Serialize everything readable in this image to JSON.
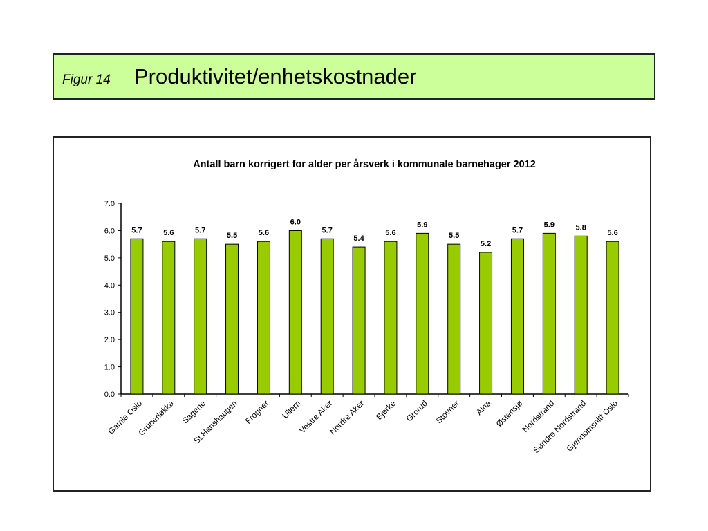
{
  "header": {
    "figure_label": "Figur 14",
    "title": "Produktivitet/enhetskostnader",
    "background": "#ccff99"
  },
  "chart_data": {
    "type": "bar",
    "title": "Antall barn korrigert for alder per årsverk i kommunale barnehager 2012",
    "xlabel": "",
    "ylabel": "",
    "ylim": [
      0,
      7
    ],
    "yticks": [
      "0.0",
      "1.0",
      "2.0",
      "3.0",
      "4.0",
      "5.0",
      "6.0",
      "7.0"
    ],
    "grid": false,
    "legend": "none",
    "bar_color": "#99cc00",
    "categories": [
      "Gamle Oslo",
      "Grünerløkka",
      "Sagene",
      "St.Hanshaugen",
      "Frogner",
      "Ullern",
      "Vestre Aker",
      "Nordre Aker",
      "Bjerke",
      "Grorud",
      "Stovner",
      "Alna",
      "Østensjø",
      "Nordstrand",
      "Søndre Nordstrand",
      "Gjennomsnitt Oslo"
    ],
    "values": [
      5.7,
      5.6,
      5.7,
      5.5,
      5.6,
      6.0,
      5.7,
      5.4,
      5.6,
      5.9,
      5.5,
      5.2,
      5.7,
      5.9,
      5.8,
      5.6
    ],
    "data_labels": [
      "5.7",
      "5.6",
      "5.7",
      "5.5",
      "5.6",
      "6.0",
      "5.7",
      "5.4",
      "5.6",
      "5.9",
      "5.5",
      "5.2",
      "5.7",
      "5.9",
      "5.8",
      "5.6"
    ]
  }
}
